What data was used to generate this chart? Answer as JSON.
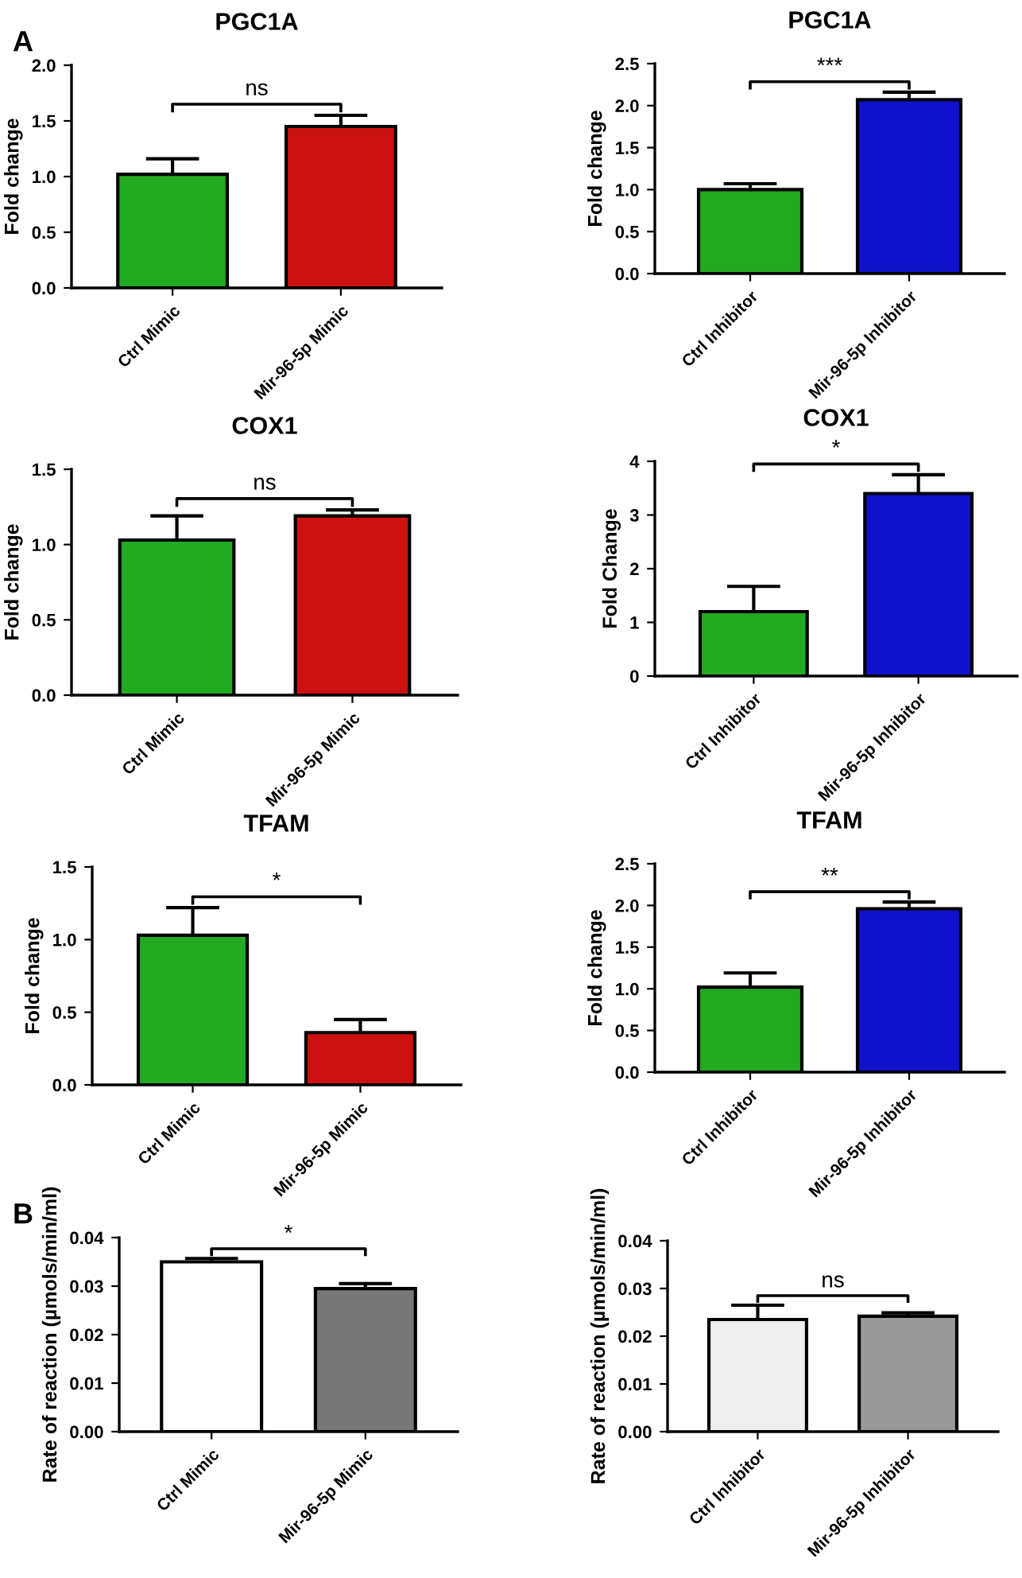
{
  "chart_data": [
    {
      "type": "bar",
      "title": "PGC1A",
      "ylabel": "Fold change",
      "categories": [
        "Ctrl Mimic",
        "Mir-96-5p Mimic"
      ],
      "values": [
        1.02,
        1.45
      ],
      "errors": [
        0.14,
        0.1
      ],
      "colors": [
        "#22aa22",
        "#cc1111"
      ],
      "ylim": [
        0,
        2.0
      ],
      "yticks": [
        {
          "value": 0,
          "label": "0.0"
        },
        0.5,
        {
          "value": 1,
          "label": "1.0"
        },
        1.5,
        {
          "value": 2,
          "label": "2.0"
        }
      ],
      "annotations": [
        "A",
        "ns"
      ]
    },
    {
      "type": "bar",
      "title": "PGC1A",
      "ylabel": "Fold change",
      "categories": [
        "Ctrl Inhibitor",
        "Mir-96-5p Inhibitor"
      ],
      "values": [
        1.0,
        2.07
      ],
      "errors": [
        0.07,
        0.09
      ],
      "colors": [
        "#22aa22",
        "#1111cc"
      ],
      "ylim": [
        0,
        2.5
      ],
      "yticks": [
        {
          "value": 0,
          "label": "0.0"
        },
        0.5,
        {
          "value": 1,
          "label": "1.0"
        },
        1.5,
        {
          "value": 2,
          "label": "2.0"
        },
        2.5
      ],
      "annotations": [
        "***"
      ]
    },
    {
      "type": "bar",
      "title": "COX1",
      "ylabel": "Fold change",
      "categories": [
        "Ctrl Mimic",
        "Mir-96-5p Mimic"
      ],
      "values": [
        1.03,
        1.19
      ],
      "errors": [
        0.16,
        0.04
      ],
      "colors": [
        "#22aa22",
        "#cc1111"
      ],
      "ylim": [
        0,
        1.5
      ],
      "yticks": [
        {
          "value": 0,
          "label": "0.0"
        },
        0.5,
        {
          "value": 1,
          "label": "1.0"
        },
        1.5
      ],
      "annotations": [
        "ns"
      ]
    },
    {
      "type": "bar",
      "title": "COX1",
      "ylabel": "Fold Change",
      "categories": [
        "Ctrl Inhibitor",
        "Mir-96-5p Inhibitor"
      ],
      "values": [
        1.2,
        3.4
      ],
      "errors": [
        0.47,
        0.35
      ],
      "colors": [
        "#22aa22",
        "#1111cc"
      ],
      "ylim": [
        0,
        4
      ],
      "yticks": [
        0,
        1,
        2,
        3,
        4
      ],
      "annotations": [
        "*"
      ]
    },
    {
      "type": "bar",
      "title": "TFAM",
      "ylabel": "Fold change",
      "categories": [
        "Ctrl Mimic",
        "Mir-96-5p Mimic"
      ],
      "values": [
        1.03,
        0.36
      ],
      "errors": [
        0.19,
        0.09
      ],
      "colors": [
        "#22aa22",
        "#cc1111"
      ],
      "ylim": [
        0,
        1.5
      ],
      "yticks": [
        {
          "value": 0,
          "label": "0.0"
        },
        0.5,
        {
          "value": 1,
          "label": "1.0"
        },
        1.5
      ],
      "annotations": [
        "*"
      ]
    },
    {
      "type": "bar",
      "title": "TFAM",
      "ylabel": "Fold change",
      "categories": [
        "Ctrl Inhibitor",
        "Mir-96-5p Inhibitor"
      ],
      "values": [
        1.02,
        1.96
      ],
      "errors": [
        0.17,
        0.08
      ],
      "colors": [
        "#22aa22",
        "#1111cc"
      ],
      "ylim": [
        0,
        2.5
      ],
      "yticks": [
        {
          "value": 0,
          "label": "0.0"
        },
        0.5,
        {
          "value": 1,
          "label": "1.0"
        },
        1.5,
        {
          "value": 2,
          "label": "2.0"
        },
        2.5
      ],
      "annotations": [
        "**"
      ]
    },
    {
      "type": "bar",
      "ylabel": "Rate of reaction (µmols/min/ml)",
      "categories": [
        "Ctrl Mimic",
        "Mir-96-5p Mimic"
      ],
      "values": [
        0.035,
        0.0295
      ],
      "errors": [
        0.0007,
        0.001
      ],
      "colors": [
        "#ffffff",
        "#777777"
      ],
      "ylim": [
        0,
        0.04
      ],
      "yticks": [
        {
          "value": 0,
          "label": "0.00"
        },
        0.01,
        0.02,
        0.03,
        0.04
      ],
      "annotations": [
        "B",
        "*"
      ]
    },
    {
      "type": "bar",
      "ylabel": "Rate of reaction (µmols/min/ml)",
      "categories": [
        "Ctrl Inhibitor",
        "Mir-96-5p Inhibitor"
      ],
      "values": [
        0.0235,
        0.0242
      ],
      "errors": [
        0.003,
        0.0007
      ],
      "colors": [
        "#eeeeee",
        "#999999"
      ],
      "ylim": [
        0,
        0.04
      ],
      "yticks": [
        {
          "value": 0,
          "label": "0.00"
        },
        0.01,
        0.02,
        0.03,
        0.04
      ],
      "annotations": [
        "ns"
      ]
    }
  ]
}
